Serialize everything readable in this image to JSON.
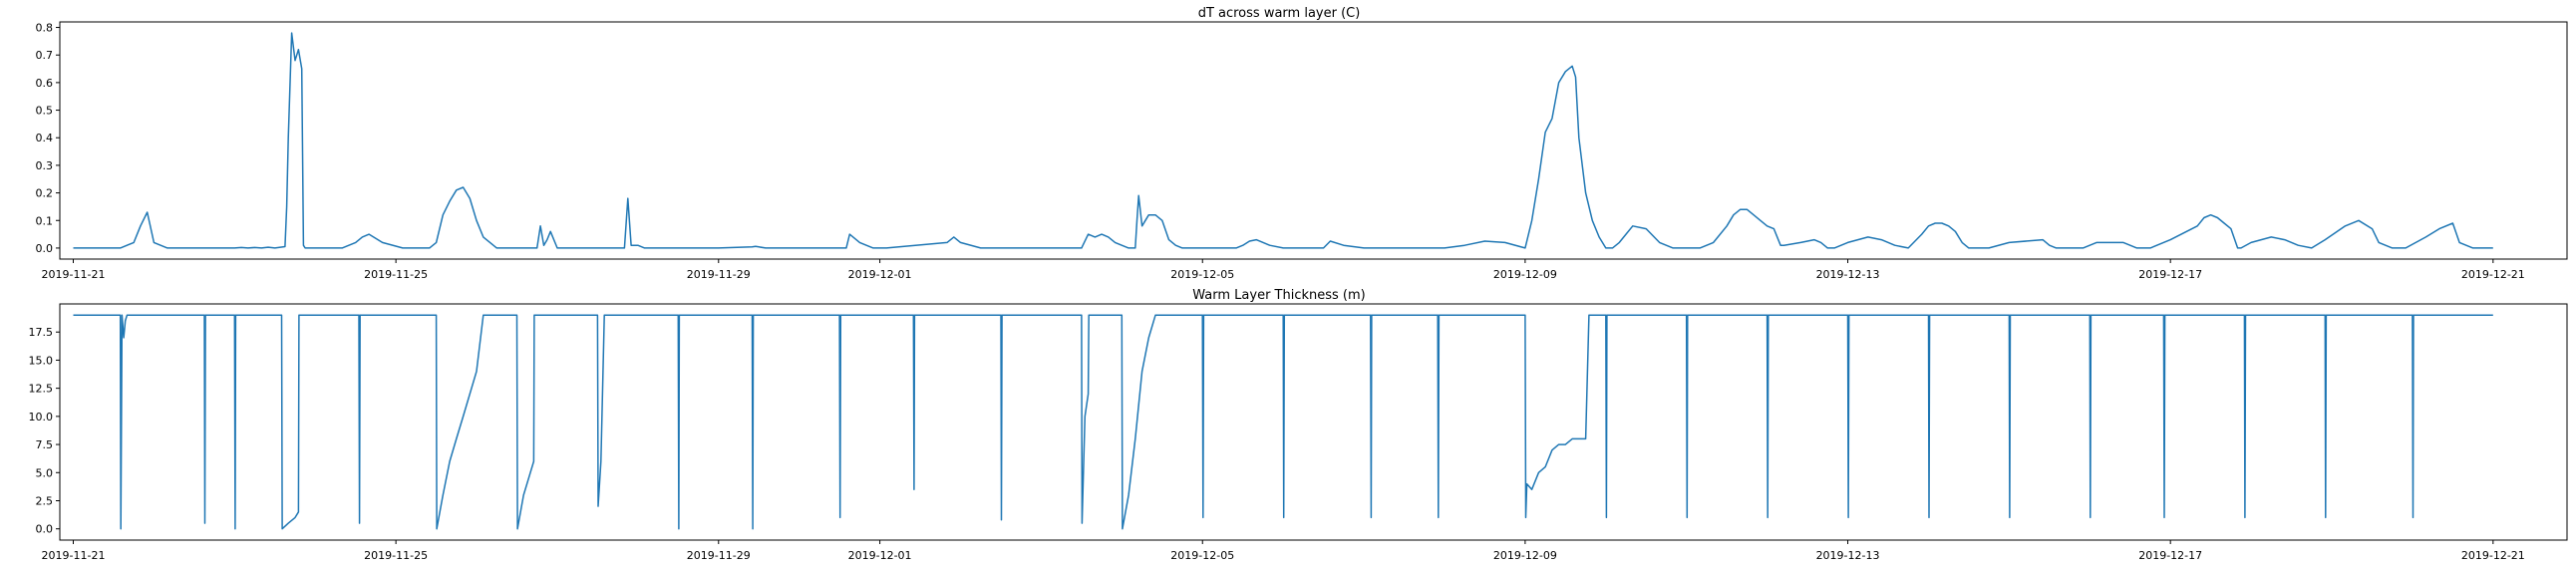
{
  "colors": {
    "series": "#1f77b4",
    "axes": "#000000",
    "background": "#ffffff"
  },
  "chart_data": [
    {
      "type": "line",
      "title": "dT across warm layer (C)",
      "xlabel": "",
      "ylabel": "",
      "x_axis": "date",
      "xlim": [
        "2019-11-20T20:00",
        "2019-12-21T22:00"
      ],
      "ylim": [
        -0.04,
        0.82
      ],
      "grid": false,
      "xticks": [
        "2019-11-21",
        "2019-11-25",
        "2019-11-29",
        "2019-12-01",
        "2019-12-05",
        "2019-12-09",
        "2019-12-13",
        "2019-12-17",
        "2019-12-21"
      ],
      "yticks": [
        0.0,
        0.1,
        0.2,
        0.3,
        0.4,
        0.5,
        0.6,
        0.7,
        0.8
      ],
      "ytick_labels": [
        "0.0",
        "0.1",
        "0.2",
        "0.3",
        "0.4",
        "0.5",
        "0.6",
        "0.7",
        "0.8"
      ],
      "series": [
        {
          "x": [
            "2019-11-21T00:00",
            "2019-11-21T14:00",
            "2019-11-21T18:00",
            "2019-11-21T20:00",
            "2019-11-21T22:00",
            "2019-11-22T00:00",
            "2019-11-22T04:00",
            "2019-11-23T00:00",
            "2019-11-23T02:00",
            "2019-11-23T04:00",
            "2019-11-23T06:00",
            "2019-11-23T08:00",
            "2019-11-23T10:00",
            "2019-11-23T12:00",
            "2019-11-23T15:00",
            "2019-11-23T15:30",
            "2019-11-23T16:00",
            "2019-11-23T17:00",
            "2019-11-23T18:00",
            "2019-11-23T19:00",
            "2019-11-23T20:00",
            "2019-11-23T20:30",
            "2019-11-23T21:00",
            "2019-11-24T08:00",
            "2019-11-24T12:00",
            "2019-11-24T14:00",
            "2019-11-24T16:00",
            "2019-11-24T20:00",
            "2019-11-25T02:00",
            "2019-11-25T10:00",
            "2019-11-25T12:00",
            "2019-11-25T14:00",
            "2019-11-25T16:00",
            "2019-11-25T18:00",
            "2019-11-25T20:00",
            "2019-11-25T22:00",
            "2019-11-26T00:00",
            "2019-11-26T02:00",
            "2019-11-26T06:00",
            "2019-11-26T18:00",
            "2019-11-26T19:00",
            "2019-11-26T20:00",
            "2019-11-26T21:00",
            "2019-11-26T22:00",
            "2019-11-27T00:00",
            "2019-11-27T20:00",
            "2019-11-27T21:00",
            "2019-11-27T22:00",
            "2019-11-28T00:00",
            "2019-11-28T02:00",
            "2019-11-28T16:00",
            "2019-11-29T00:00",
            "2019-11-29T10:00",
            "2019-11-29T11:00",
            "2019-11-29T12:00",
            "2019-11-29T14:00",
            "2019-11-30T00:00",
            "2019-11-30T14:00",
            "2019-11-30T15:00",
            "2019-11-30T18:00",
            "2019-11-30T20:00",
            "2019-11-30T22:00",
            "2019-12-01T00:00",
            "2019-12-01T02:00",
            "2019-12-01T20:00",
            "2019-12-01T22:00",
            "2019-12-02T00:00",
            "2019-12-02T06:00",
            "2019-12-03T00:00",
            "2019-12-03T12:00",
            "2019-12-03T14:00",
            "2019-12-03T16:00",
            "2019-12-03T18:00",
            "2019-12-03T20:00",
            "2019-12-03T22:00",
            "2019-12-04T00:00",
            "2019-12-04T02:00",
            "2019-12-04T04:00",
            "2019-12-04T04:30",
            "2019-12-04T05:00",
            "2019-12-04T06:00",
            "2019-12-04T08:00",
            "2019-12-04T10:00",
            "2019-12-04T12:00",
            "2019-12-04T14:00",
            "2019-12-04T16:00",
            "2019-12-04T18:00",
            "2019-12-05T00:00",
            "2019-12-05T10:00",
            "2019-12-05T12:00",
            "2019-12-05T14:00",
            "2019-12-05T16:00",
            "2019-12-05T20:00",
            "2019-12-06T00:00",
            "2019-12-06T12:00",
            "2019-12-06T14:00",
            "2019-12-06T18:00",
            "2019-12-07T00:00",
            "2019-12-08T00:00",
            "2019-12-08T06:00",
            "2019-12-08T12:00",
            "2019-12-08T18:00",
            "2019-12-09T00:00",
            "2019-12-09T02:00",
            "2019-12-09T04:00",
            "2019-12-09T06:00",
            "2019-12-09T08:00",
            "2019-12-09T10:00",
            "2019-12-09T12:00",
            "2019-12-09T14:00",
            "2019-12-09T15:00",
            "2019-12-09T16:00",
            "2019-12-09T18:00",
            "2019-12-09T20:00",
            "2019-12-09T22:00",
            "2019-12-10T00:00",
            "2019-12-10T02:00",
            "2019-12-10T04:00",
            "2019-12-10T06:00",
            "2019-12-10T08:00",
            "2019-12-10T12:00",
            "2019-12-10T16:00",
            "2019-12-10T20:00",
            "2019-12-11T00:00",
            "2019-12-11T04:00",
            "2019-12-11T08:00",
            "2019-12-11T12:00",
            "2019-12-11T14:00",
            "2019-12-11T16:00",
            "2019-12-11T18:00",
            "2019-12-11T20:00",
            "2019-12-11T22:00",
            "2019-12-12T00:00",
            "2019-12-12T02:00",
            "2019-12-12T04:00",
            "2019-12-12T05:00",
            "2019-12-12T10:00",
            "2019-12-12T12:00",
            "2019-12-12T14:00",
            "2019-12-12T16:00",
            "2019-12-12T18:00",
            "2019-12-12T20:00",
            "2019-12-13T00:00",
            "2019-12-13T06:00",
            "2019-12-13T10:00",
            "2019-12-13T14:00",
            "2019-12-13T18:00",
            "2019-12-13T22:00",
            "2019-12-14T00:00",
            "2019-12-14T02:00",
            "2019-12-14T04:00",
            "2019-12-14T06:00",
            "2019-12-14T08:00",
            "2019-12-14T10:00",
            "2019-12-14T12:00",
            "2019-12-14T14:00",
            "2019-12-14T18:00",
            "2019-12-15T00:00",
            "2019-12-15T10:00",
            "2019-12-15T12:00",
            "2019-12-15T14:00",
            "2019-12-15T18:00",
            "2019-12-15T22:00",
            "2019-12-16T02:00",
            "2019-12-16T10:00",
            "2019-12-16T14:00",
            "2019-12-16T18:00",
            "2019-12-17T00:00",
            "2019-12-17T08:00",
            "2019-12-17T10:00",
            "2019-12-17T12:00",
            "2019-12-17T14:00",
            "2019-12-17T16:00",
            "2019-12-17T18:00",
            "2019-12-17T20:00",
            "2019-12-17T21:00",
            "2019-12-18T00:00",
            "2019-12-18T06:00",
            "2019-12-18T10:00",
            "2019-12-18T14:00",
            "2019-12-18T18:00",
            "2019-12-18T22:00",
            "2019-12-19T04:00",
            "2019-12-19T08:00",
            "2019-12-19T12:00",
            "2019-12-19T14:00",
            "2019-12-19T18:00",
            "2019-12-19T22:00",
            "2019-12-20T04:00",
            "2019-12-20T08:00",
            "2019-12-20T12:00",
            "2019-12-20T14:00",
            "2019-12-20T18:00",
            "2019-12-20T22:00",
            "2019-12-21T00:00"
          ],
          "values": [
            0,
            0,
            0.02,
            0.08,
            0.13,
            0.02,
            0,
            0,
            0.002,
            0,
            0.002,
            0,
            0.003,
            0,
            0.005,
            0.15,
            0.4,
            0.78,
            0.68,
            0.72,
            0.65,
            0.01,
            0,
            0,
            0.02,
            0.04,
            0.05,
            0.02,
            0,
            0,
            0.02,
            0.12,
            0.17,
            0.21,
            0.22,
            0.18,
            0.1,
            0.04,
            0,
            0,
            0.08,
            0.01,
            0.03,
            0.06,
            0,
            0,
            0.18,
            0.01,
            0.01,
            0,
            0,
            0,
            0.004,
            0.006,
            0.004,
            0,
            0,
            0,
            0.05,
            0.02,
            0.01,
            0,
            0,
            0,
            0.02,
            0.04,
            0.02,
            0,
            0,
            0,
            0.05,
            0.04,
            0.05,
            0.04,
            0.02,
            0.01,
            0,
            0,
            0.1,
            0.19,
            0.08,
            0.12,
            0.12,
            0.1,
            0.03,
            0.01,
            0,
            0,
            0,
            0.01,
            0.025,
            0.03,
            0.01,
            0,
            0,
            0.025,
            0.01,
            0,
            0,
            0.01,
            0.025,
            0.02,
            0,
            0.1,
            0.25,
            0.42,
            0.47,
            0.6,
            0.64,
            0.66,
            0.62,
            0.4,
            0.2,
            0.1,
            0.04,
            0,
            0,
            0.02,
            0.05,
            0.08,
            0.07,
            0.02,
            0,
            0,
            0,
            0.02,
            0.08,
            0.12,
            0.14,
            0.14,
            0.12,
            0.1,
            0.08,
            0.07,
            0.01,
            0.01,
            0.02,
            0.025,
            0.03,
            0.02,
            0,
            0,
            0.02,
            0.04,
            0.03,
            0.01,
            0,
            0.05,
            0.08,
            0.09,
            0.09,
            0.08,
            0.06,
            0.02,
            0,
            0,
            0,
            0.02,
            0.03,
            0.01,
            0,
            0,
            0,
            0.02,
            0.02,
            0,
            0,
            0.03,
            0.08,
            0.11,
            0.12,
            0.11,
            0.09,
            0.07,
            0,
            0,
            0.02,
            0.04,
            0.03,
            0.01,
            0,
            0.03,
            0.08,
            0.1,
            0.07,
            0.02,
            0,
            0,
            0.04,
            0.07,
            0.09,
            0.02,
            0,
            0,
            0
          ]
        }
      ]
    },
    {
      "type": "line",
      "title": "Warm Layer Thickness (m)",
      "xlabel": "",
      "ylabel": "",
      "x_axis": "date",
      "xlim": [
        "2019-11-20T20:00",
        "2019-12-21T22:00"
      ],
      "ylim": [
        -1.0,
        20.0
      ],
      "grid": false,
      "xticks": [
        "2019-11-21",
        "2019-11-25",
        "2019-11-29",
        "2019-12-01",
        "2019-12-05",
        "2019-12-09",
        "2019-12-13",
        "2019-12-17",
        "2019-12-21"
      ],
      "yticks": [
        0.0,
        2.5,
        5.0,
        7.5,
        10.0,
        12.5,
        15.0,
        17.5
      ],
      "ytick_labels": [
        "0.0",
        "2.5",
        "5.0",
        "7.5",
        "10.0",
        "12.5",
        "15.0",
        "17.5"
      ],
      "series": [
        {
          "x": [
            "2019-11-21T00:00",
            "2019-11-21T14:00",
            "2019-11-21T14:10",
            "2019-11-21T14:30",
            "2019-11-21T15:00",
            "2019-11-21T15:30",
            "2019-11-21T16:00",
            "2019-11-21T17:00",
            "2019-11-21T20:00",
            "2019-11-22T15:00",
            "2019-11-22T15:10",
            "2019-11-22T15:20",
            "2019-11-22T15:30",
            "2019-11-23T00:00",
            "2019-11-23T00:10",
            "2019-11-23T00:20",
            "2019-11-23T14:00",
            "2019-11-23T14:10",
            "2019-11-23T16:00",
            "2019-11-23T18:00",
            "2019-11-23T19:00",
            "2019-11-23T19:10",
            "2019-11-23T21:00",
            "2019-11-24T13:00",
            "2019-11-24T13:10",
            "2019-11-24T13:20",
            "2019-11-24T13:40",
            "2019-11-25T12:00",
            "2019-11-25T12:10",
            "2019-11-25T14:00",
            "2019-11-25T16:00",
            "2019-11-25T18:00",
            "2019-11-25T20:00",
            "2019-11-25T22:00",
            "2019-11-26T00:00",
            "2019-11-26T02:00",
            "2019-11-26T02:10",
            "2019-11-26T12:00",
            "2019-11-26T12:10",
            "2019-11-26T14:00",
            "2019-11-26T16:00",
            "2019-11-26T17:00",
            "2019-11-26T17:10",
            "2019-11-27T12:00",
            "2019-11-27T12:10",
            "2019-11-27T13:00",
            "2019-11-27T14:00",
            "2019-11-27T14:10",
            "2019-11-28T12:00",
            "2019-11-28T12:10",
            "2019-11-28T12:20",
            "2019-11-29T10:00",
            "2019-11-29T10:10",
            "2019-11-29T10:20",
            "2019-11-29T12:00",
            "2019-11-29T14:00",
            "2019-11-29T14:10",
            "2019-11-30T12:00",
            "2019-11-30T12:10",
            "2019-11-30T12:20",
            "2019-12-01T10:00",
            "2019-12-01T10:10",
            "2019-12-01T10:20",
            "2019-12-02T12:00",
            "2019-12-02T12:10",
            "2019-12-02T12:20",
            "2019-12-03T12:00",
            "2019-12-03T12:10",
            "2019-12-03T13:00",
            "2019-12-03T14:00",
            "2019-12-03T14:10",
            "2019-12-04T00:00",
            "2019-12-04T00:10",
            "2019-12-04T02:00",
            "2019-12-04T04:00",
            "2019-12-04T06:00",
            "2019-12-04T08:00",
            "2019-12-04T10:00",
            "2019-12-05T00:00",
            "2019-12-05T00:10",
            "2019-12-05T00:20",
            "2019-12-06T00:00",
            "2019-12-06T00:10",
            "2019-12-06T00:20",
            "2019-12-07T02:00",
            "2019-12-07T02:10",
            "2019-12-07T02:20",
            "2019-12-07T22:00",
            "2019-12-07T22:10",
            "2019-12-07T22:20",
            "2019-12-09T00:00",
            "2019-12-09T00:10",
            "2019-12-09T00:30",
            "2019-12-09T02:00",
            "2019-12-09T04:00",
            "2019-12-09T06:00",
            "2019-12-09T08:00",
            "2019-12-09T10:00",
            "2019-12-09T12:00",
            "2019-12-09T14:00",
            "2019-12-09T16:00",
            "2019-12-09T18:00",
            "2019-12-09T19:00",
            "2019-12-09T22:00",
            "2019-12-09T22:10",
            "2019-12-10T00:00",
            "2019-12-10T00:10",
            "2019-12-10T00:20",
            "2019-12-11T00:00",
            "2019-12-11T00:10",
            "2019-12-11T00:20",
            "2019-12-12T00:00",
            "2019-12-12T00:10",
            "2019-12-12T00:20",
            "2019-12-13T00:00",
            "2019-12-13T00:10",
            "2019-12-13T00:20",
            "2019-12-14T00:00",
            "2019-12-14T00:10",
            "2019-12-14T00:20",
            "2019-12-15T00:00",
            "2019-12-15T00:10",
            "2019-12-15T00:20",
            "2019-12-16T00:00",
            "2019-12-16T00:10",
            "2019-12-16T00:20",
            "2019-12-16T22:00",
            "2019-12-16T22:10",
            "2019-12-16T22:20",
            "2019-12-17T22:00",
            "2019-12-17T22:10",
            "2019-12-17T22:20",
            "2019-12-18T22:00",
            "2019-12-18T22:10",
            "2019-12-18T22:20",
            "2019-12-20T00:00",
            "2019-12-20T00:10",
            "2019-12-20T00:20",
            "2019-12-21T00:00"
          ],
          "values": [
            19,
            19,
            0,
            19,
            17,
            18.5,
            19,
            19,
            19,
            19,
            0.5,
            19,
            19,
            19,
            0,
            19,
            19,
            0,
            0.5,
            1,
            1.5,
            19,
            19,
            19,
            0.5,
            19,
            19,
            19,
            0,
            3,
            6,
            8,
            10,
            12,
            14,
            19,
            19,
            19,
            0,
            3,
            5,
            6,
            19,
            19,
            2,
            6,
            19,
            19,
            19,
            0,
            19,
            19,
            0,
            19,
            19,
            19,
            19,
            19,
            1,
            19,
            19,
            3.5,
            19,
            19,
            0.8,
            19,
            19,
            0.5,
            10,
            12,
            19,
            19,
            0,
            3,
            8,
            14,
            17,
            19,
            19,
            1,
            19,
            19,
            1,
            19,
            19,
            1,
            19,
            19,
            1,
            19,
            19,
            1,
            4,
            3.5,
            5,
            5.5,
            7,
            7.5,
            7.5,
            8,
            8,
            8,
            19,
            19,
            19,
            19,
            1,
            19,
            19,
            1,
            19,
            19,
            1,
            19,
            19,
            1,
            19,
            19,
            1,
            19,
            19,
            1,
            19,
            19,
            1,
            19,
            19,
            1,
            19,
            19,
            1,
            19,
            19,
            1,
            19,
            19,
            1,
            19,
            19
          ]
        }
      ]
    }
  ]
}
